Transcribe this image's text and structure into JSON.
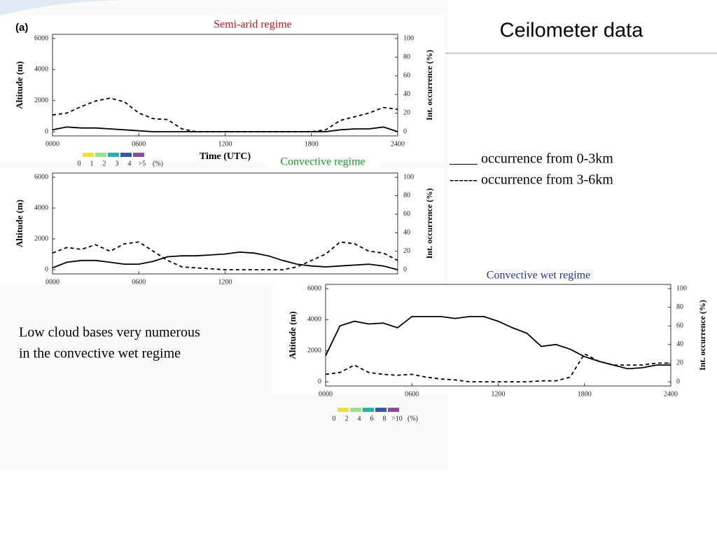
{
  "slide": {
    "title": "Ceilometer data",
    "legend": [
      "____ occurrence from 0-3km",
      "------ occurrence from 3-6km"
    ],
    "note": [
      "Low cloud bases very numerous",
      "in the convective wet regime"
    ]
  },
  "chart_data": [
    {
      "type": "line",
      "panel_label": "(a)",
      "title": "Semi-arid regime",
      "title_color": "#d01010",
      "x_label": "Time (UTC)",
      "y_label": "Altitude (m)",
      "y2_label": "Int. occurrence (%)",
      "x": [
        0,
        100,
        200,
        300,
        400,
        500,
        600,
        700,
        800,
        900,
        1000,
        1100,
        1200,
        1300,
        1400,
        1500,
        1600,
        1700,
        1800,
        1900,
        2000,
        2100,
        2200,
        2300,
        2400
      ],
      "xlim": [
        0,
        2400
      ],
      "xticks": [
        {
          "value": 0,
          "label": "0000"
        },
        {
          "value": 600,
          "label": "0600"
        },
        1200,
        1800,
        2400
      ],
      "ylim": [
        0,
        6000
      ],
      "yticks": [
        0,
        2000,
        4000,
        6000
      ],
      "y2lim": [
        0,
        100
      ],
      "y2ticks": [
        0,
        20,
        40,
        60,
        80,
        100
      ],
      "series": [
        {
          "color": "#000000",
          "dashed": false,
          "axis": "y2",
          "values": [
            2,
            5,
            4,
            4,
            3,
            2,
            1,
            0,
            0,
            0,
            0,
            0,
            0,
            0,
            0,
            0,
            0,
            0,
            0,
            0,
            2,
            3,
            3,
            5,
            0
          ]
        },
        {
          "color": "#000000",
          "dashed": true,
          "axis": "y2",
          "values": [
            18,
            20,
            27,
            33,
            36,
            32,
            20,
            14,
            13,
            3,
            0,
            0,
            0,
            0,
            0,
            0,
            0,
            0,
            0,
            2,
            12,
            16,
            20,
            26,
            24
          ]
        }
      ],
      "colorbar": {
        "colors": [
          "#f0dc3c",
          "#9ee08a",
          "#2ab0a8",
          "#2e5aa8",
          "#8a4aa0"
        ],
        "labels": [
          0,
          1,
          2,
          3,
          4,
          ">5"
        ],
        "unit": "(%)"
      }
    },
    {
      "type": "line",
      "title": "Convective regime",
      "title_color": "#10a020",
      "y_label": "Altitude (m)",
      "y2_label": "Int. occurrence (%)",
      "x": [
        0,
        100,
        200,
        300,
        400,
        500,
        600,
        700,
        800,
        900,
        1000,
        1100,
        1200,
        1300,
        1400,
        1500,
        1600,
        1700,
        1800,
        1900,
        2000,
        2100,
        2200,
        2300,
        2400
      ],
      "xlim": [
        0,
        2400
      ],
      "xticks": [
        {
          "value": 0,
          "label": "0000"
        },
        {
          "value": 600,
          "label": "0600"
        },
        1200
      ],
      "ylim": [
        0,
        6000
      ],
      "yticks": [
        0,
        2000,
        4000,
        6000
      ],
      "y2lim": [
        0,
        100
      ],
      "y2ticks": [
        0,
        20,
        40,
        60,
        80,
        100
      ],
      "series": [
        {
          "color": "#000000",
          "dashed": false,
          "axis": "y2",
          "values": [
            2,
            8,
            10,
            10,
            8,
            6,
            6,
            9,
            14,
            15,
            15,
            16,
            17,
            19,
            18,
            15,
            10,
            6,
            4,
            3,
            4,
            5,
            6,
            4,
            0
          ]
        },
        {
          "color": "#000000",
          "dashed": true,
          "axis": "y2",
          "values": [
            18,
            24,
            22,
            27,
            20,
            28,
            30,
            20,
            10,
            3,
            2,
            1,
            0,
            0,
            0,
            0,
            0,
            3,
            10,
            17,
            30,
            28,
            20,
            18,
            10
          ]
        }
      ]
    },
    {
      "type": "line",
      "title": "Convective wet regime",
      "title_color": "#2030a0",
      "y_label": "Altitude (m)",
      "y2_label": "Int. occurrence (%)",
      "x": [
        0,
        100,
        200,
        300,
        400,
        500,
        600,
        700,
        800,
        900,
        1000,
        1100,
        1200,
        1300,
        1400,
        1500,
        1600,
        1700,
        1800,
        1900,
        2000,
        2100,
        2200,
        2300,
        2400
      ],
      "xlim": [
        0,
        2400
      ],
      "xticks": [
        {
          "value": 0,
          "label": "0000"
        },
        {
          "value": 600,
          "label": "0600"
        },
        1200,
        1800,
        2400
      ],
      "ylim": [
        0,
        6000
      ],
      "yticks": [
        0,
        2000,
        4000,
        6000
      ],
      "y2lim": [
        0,
        100
      ],
      "y2ticks": [
        0,
        20,
        40,
        60,
        80,
        100
      ],
      "series": [
        {
          "color": "#000000",
          "dashed": false,
          "axis": "y2",
          "values": [
            28,
            60,
            65,
            62,
            63,
            58,
            70,
            70,
            70,
            68,
            70,
            70,
            65,
            58,
            52,
            38,
            40,
            35,
            27,
            22,
            18,
            14,
            15,
            18,
            18
          ]
        },
        {
          "color": "#000000",
          "dashed": true,
          "axis": "y2",
          "values": [
            8,
            10,
            18,
            10,
            8,
            7,
            8,
            5,
            3,
            2,
            0,
            0,
            0,
            0,
            0,
            1,
            1,
            5,
            30,
            22,
            18,
            18,
            18,
            20,
            20
          ]
        }
      ],
      "colorbar": {
        "colors": [
          "#f0dc3c",
          "#9ee08a",
          "#2ab0a8",
          "#2e5aa8",
          "#8a4aa0"
        ],
        "labels": [
          0,
          2,
          4,
          6,
          8,
          ">10"
        ],
        "unit": "(%)"
      }
    }
  ]
}
